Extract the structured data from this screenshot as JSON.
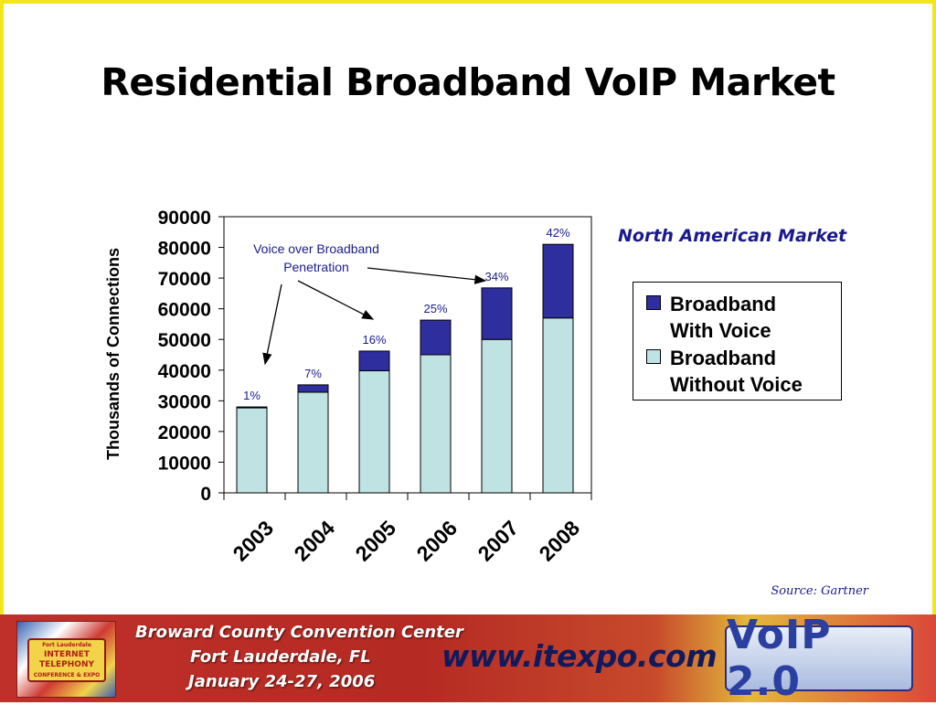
{
  "slide": {
    "title": "Residential Broadband VoIP Market",
    "market_label": "North American Market",
    "source": "Source: Gartner"
  },
  "chart_data": {
    "type": "bar",
    "stacked": true,
    "title": "",
    "xlabel": "",
    "ylabel": "Thousands of Connections",
    "ylim": [
      0,
      90000
    ],
    "yticks": [
      0,
      10000,
      20000,
      30000,
      40000,
      50000,
      60000,
      70000,
      80000,
      90000
    ],
    "categories": [
      "2003",
      "2004",
      "2005",
      "2006",
      "2007",
      "2008"
    ],
    "series": [
      {
        "name": "Broadband Without Voice",
        "color": "#bfe3e3",
        "values": [
          27700,
          32800,
          39800,
          45000,
          50000,
          57000
        ]
      },
      {
        "name": "Broadband With Voice",
        "color": "#2e2e9e",
        "values": [
          300,
          2400,
          6400,
          11300,
          16800,
          24000
        ]
      }
    ],
    "data_labels": [
      "1%",
      "7%",
      "16%",
      "25%",
      "34%",
      "42%"
    ],
    "annotation": {
      "line1": "Voice over Broadband",
      "line2": "Penetration"
    },
    "legend": {
      "position": "right",
      "items": [
        {
          "line1": "Broadband",
          "line2": "With Voice",
          "color": "#2e2e9e"
        },
        {
          "line1": "Broadband",
          "line2": "Without Voice",
          "color": "#bfe3e3"
        }
      ]
    },
    "grid": false
  },
  "footer": {
    "logo_small": "Fort Lauderdale",
    "logo_big1": "INTERNET",
    "logo_big2": "TELEPHONY",
    "logo_sub": "CONFERENCE & EXPO",
    "line1": "Broward County Convention Center",
    "line2": "Fort Lauderdale, FL",
    "line3": "January 24-27, 2006",
    "url": "www.itexpo.com",
    "badge": "VoIP 2.0"
  }
}
